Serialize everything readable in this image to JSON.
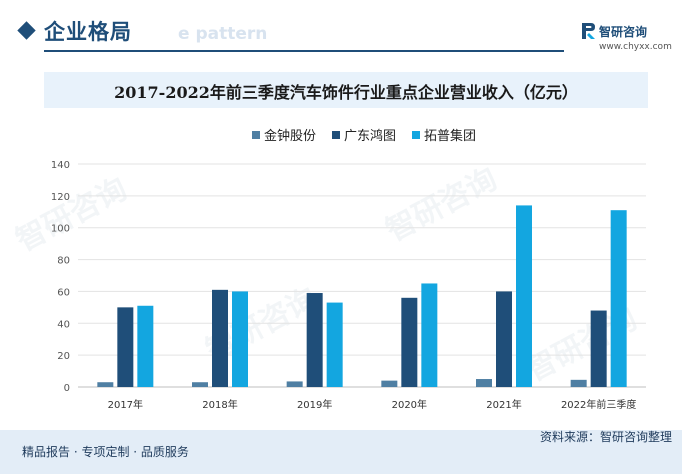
{
  "header": {
    "section_title": "企业格局",
    "section_subtitle": "e pattern",
    "brand_name": "智研咨询",
    "brand_url": "www.chyxx.com"
  },
  "chart_title": "2017-2022年前三季度汽车饰件行业重点企业营业收入（亿元）",
  "footer": {
    "left": "精品报告 · 专项定制 · 品质服务",
    "source": "资料来源：智研咨询整理"
  },
  "colors": {
    "accent": "#1f4e79",
    "banner_bg": "#e8f2fb",
    "footer_bg": "#e3edf7"
  },
  "chart_data": {
    "type": "bar",
    "categories": [
      "2017年",
      "2018年",
      "2019年",
      "2020年",
      "2021年",
      "2022年前三季度"
    ],
    "series": [
      {
        "name": "金钟股份",
        "color": "#4f7fa3",
        "values": [
          3,
          3,
          3.5,
          4,
          5,
          4.5
        ]
      },
      {
        "name": "广东鸿图",
        "color": "#1f4e79",
        "values": [
          50,
          61,
          59,
          56,
          60,
          48
        ]
      },
      {
        "name": "拓普集团",
        "color": "#13a6e0",
        "values": [
          51,
          60,
          53,
          65,
          114,
          111
        ]
      }
    ],
    "y_ticks": [
      "0",
      "20",
      "40",
      "60",
      "80",
      "100",
      "120",
      "140"
    ],
    "ylim": [
      0,
      140
    ],
    "grid": true,
    "legend": "top-center"
  }
}
